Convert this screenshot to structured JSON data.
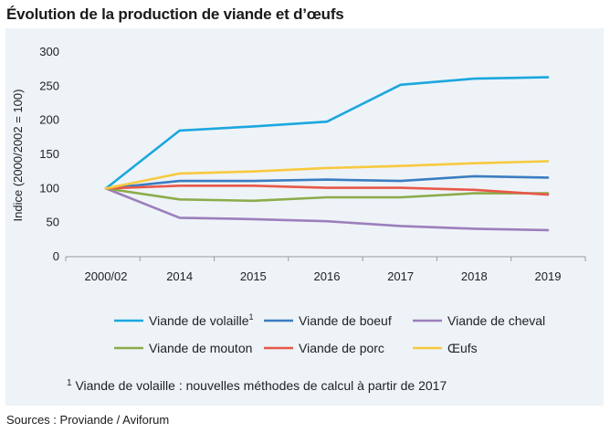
{
  "page": {
    "title": "Évolution de la production de viande et d’œufs",
    "source": "Sources : Proviande / Aviforum",
    "footnote_mark": "1",
    "footnote_text": " Viande de volaille : nouvelles méthodes de calcul à partir de 2017"
  },
  "chart_data": {
    "type": "line",
    "title": "Évolution de la production de viande et d’œufs",
    "xlabel": "",
    "ylabel": "Indice (2000/2002 = 100)",
    "ylim": [
      0,
      300
    ],
    "yticks": [
      0,
      50,
      100,
      150,
      200,
      250,
      300
    ],
    "grid": false,
    "legend_position": "bottom",
    "categories": [
      "2000/02",
      "2014",
      "2015",
      "2016",
      "2017",
      "2018",
      "2019"
    ],
    "series": [
      {
        "name": "Viande de volaille",
        "sup": "1",
        "color": "#1ba7de",
        "values": [
          100,
          185,
          191,
          198,
          252,
          261,
          263
        ]
      },
      {
        "name": "Viande de boeuf",
        "sup": "",
        "color": "#3a7dc0",
        "values": [
          100,
          111,
          111,
          113,
          111,
          118,
          116
        ]
      },
      {
        "name": "Viande de cheval",
        "sup": "",
        "color": "#9b7fba",
        "values": [
          100,
          57,
          55,
          52,
          45,
          41,
          39
        ]
      },
      {
        "name": "Viande de mouton",
        "sup": "",
        "color": "#8cac4b",
        "values": [
          100,
          84,
          82,
          87,
          87,
          93,
          93
        ]
      },
      {
        "name": "Viande de porc",
        "sup": "",
        "color": "#e8584a",
        "values": [
          100,
          104,
          104,
          101,
          101,
          98,
          91
        ]
      },
      {
        "name": "Œufs",
        "sup": "",
        "color": "#f7c93e",
        "values": [
          100,
          122,
          125,
          130,
          133,
          137,
          140
        ]
      }
    ]
  }
}
